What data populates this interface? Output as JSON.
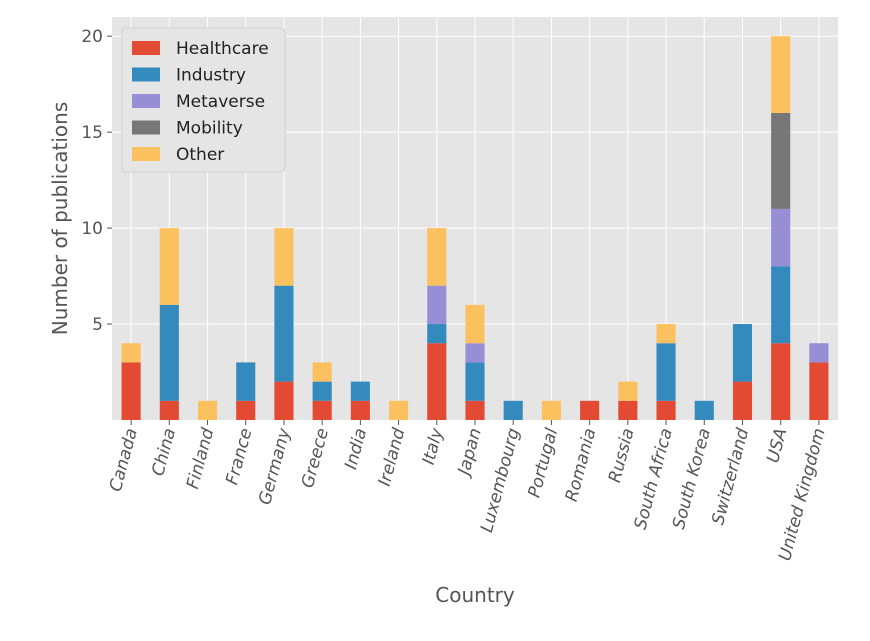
{
  "chart_data": {
    "type": "bar",
    "stacked": true,
    "title": "",
    "xlabel": "Country",
    "ylabel": "Number of publications",
    "ylim": [
      0,
      21
    ],
    "yticks": [
      5,
      10,
      15,
      20
    ],
    "grid": true,
    "legend_position": "top-left",
    "categories": [
      "Canada",
      "China",
      "Finland",
      "France",
      "Germany",
      "Greece",
      "India",
      "Ireland",
      "Italy",
      "Japan",
      "Luxembourg",
      "Portugal",
      "Romania",
      "Russia",
      "South Africa",
      "South Korea",
      "Switzerland",
      "USA",
      "United Kingdom"
    ],
    "series": [
      {
        "name": "Healthcare",
        "color": "#E24A33",
        "values": [
          3,
          1,
          0,
          1,
          2,
          1,
          1,
          0,
          4,
          1,
          0,
          0,
          1,
          1,
          1,
          0,
          2,
          4,
          3
        ]
      },
      {
        "name": "Industry",
        "color": "#348ABD",
        "values": [
          0,
          5,
          0,
          2,
          5,
          1,
          1,
          0,
          1,
          2,
          1,
          0,
          0,
          0,
          3,
          1,
          3,
          4,
          0
        ]
      },
      {
        "name": "Metaverse",
        "color": "#988ED5",
        "values": [
          0,
          0,
          0,
          0,
          0,
          0,
          0,
          0,
          2,
          1,
          0,
          0,
          0,
          0,
          0,
          0,
          0,
          3,
          1
        ]
      },
      {
        "name": "Mobility",
        "color": "#777777",
        "values": [
          0,
          0,
          0,
          0,
          0,
          0,
          0,
          0,
          0,
          0,
          0,
          0,
          0,
          0,
          0,
          0,
          0,
          5,
          0
        ]
      },
      {
        "name": "Other",
        "color": "#FBC15E",
        "values": [
          1,
          4,
          1,
          0,
          3,
          1,
          0,
          1,
          3,
          2,
          0,
          1,
          0,
          1,
          1,
          0,
          0,
          4,
          0
        ]
      }
    ]
  }
}
